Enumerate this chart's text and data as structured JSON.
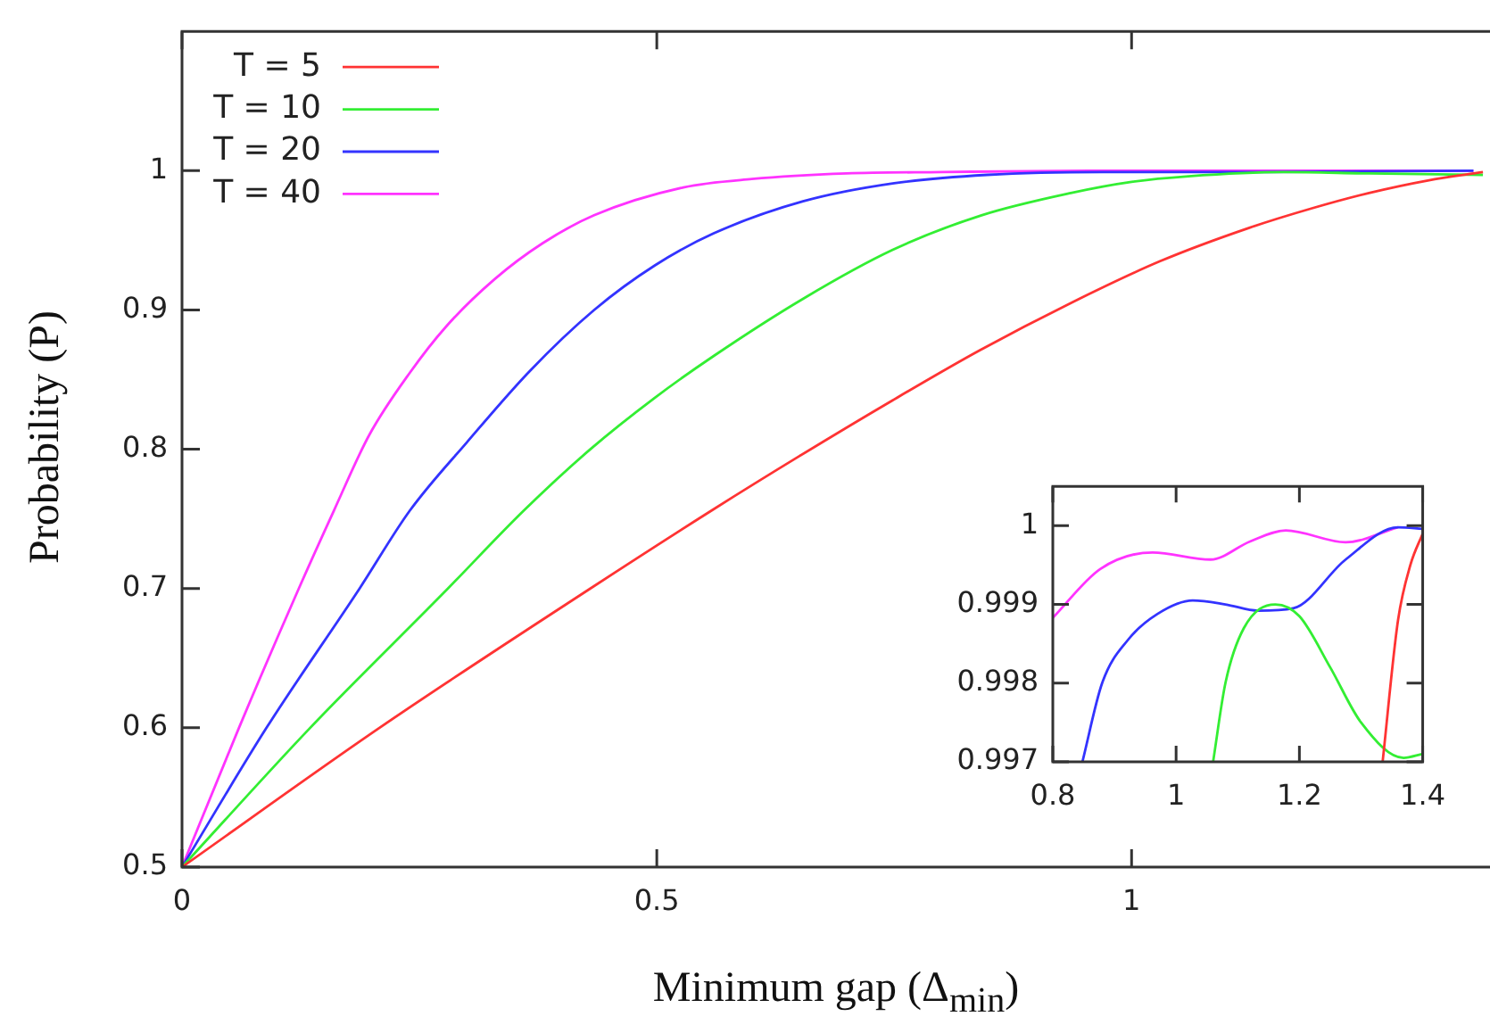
{
  "chart_data": [
    {
      "type": "line",
      "xlabel": "Minimum gap (Δ$_{min}$)",
      "ylabel": "Probability (P)",
      "xlim": [
        0,
        1.4
      ],
      "ylim": [
        0.5,
        1.1
      ],
      "xticks": [
        0,
        0.5,
        1
      ],
      "yticks": [
        0.5,
        0.6,
        0.7,
        0.8,
        0.9,
        1
      ],
      "legend": "top left",
      "line_style": "solid",
      "marker": "none",
      "series": [
        {
          "name": "T = 5",
          "color": "#ff3333",
          "x": [
            0,
            0.208,
            0.43,
            0.56,
            0.65,
            0.748,
            0.84,
            0.936,
            1.03,
            1.124,
            1.19,
            1.25,
            1.312,
            1.37
          ],
          "values": [
            0.5,
            0.6,
            0.7,
            0.757,
            0.795,
            0.835,
            0.871,
            0.905,
            0.935,
            0.959,
            0.973,
            0.984,
            0.993,
            0.999
          ]
        },
        {
          "name": "T = 10",
          "color": "#33ee33",
          "x": [
            0,
            0.135,
            0.28,
            0.36,
            0.43,
            0.498,
            0.56,
            0.654,
            0.748,
            0.842,
            0.936,
            1.0,
            1.06,
            1.16,
            1.25,
            1.37
          ],
          "values": [
            0.5,
            0.6,
            0.7,
            0.756,
            0.8,
            0.837,
            0.867,
            0.908,
            0.943,
            0.968,
            0.984,
            0.992,
            0.996,
            0.999,
            0.998,
            0.997
          ]
        },
        {
          "name": "T = 20",
          "color": "#3333ff",
          "x": [
            0,
            0.089,
            0.187,
            0.24,
            0.3,
            0.366,
            0.434,
            0.498,
            0.56,
            0.654,
            0.75,
            0.848,
            0.97,
            1.133,
            1.36
          ],
          "values": [
            0.5,
            0.6,
            0.7,
            0.756,
            0.805,
            0.856,
            0.9,
            0.932,
            0.955,
            0.978,
            0.991,
            0.997,
            0.999,
            0.999,
            1.0
          ]
        },
        {
          "name": "T = 40",
          "color": "#ff33ff",
          "x": [
            0,
            0.06,
            0.123,
            0.16,
            0.197,
            0.24,
            0.278,
            0.329,
            0.38,
            0.434,
            0.528,
            0.6,
            0.7,
            0.8,
            0.962,
            1.178,
            1.36
          ],
          "values": [
            0.5,
            0.6,
            0.7,
            0.756,
            0.81,
            0.855,
            0.888,
            0.922,
            0.948,
            0.968,
            0.988,
            0.994,
            0.998,
            0.999,
            1.0,
            1.0,
            1.0
          ]
        }
      ]
    },
    {
      "type": "line",
      "xlim": [
        0.8,
        1.4
      ],
      "ylim": [
        0.997,
        1.0005
      ],
      "xticks": [
        0.8,
        1,
        1.2,
        1.4
      ],
      "yticks": [
        0.997,
        0.998,
        0.999,
        1
      ],
      "line_style": "solid",
      "marker": "none",
      "series": [
        {
          "color": "#ff3333",
          "x": [
            1.335,
            1.36,
            1.38,
            1.4
          ],
          "values": [
            0.997,
            0.9988,
            0.9995,
            0.9999
          ]
        },
        {
          "color": "#33ee33",
          "x": [
            1.06,
            1.08,
            1.11,
            1.161,
            1.2,
            1.25,
            1.3,
            1.369,
            1.4
          ],
          "values": [
            0.997,
            0.998,
            0.9987,
            0.999,
            0.99885,
            0.9982,
            0.9975,
            0.99705,
            0.9971
          ]
        },
        {
          "color": "#3333ff",
          "x": [
            0.848,
            0.88,
            0.922,
            0.97,
            1.027,
            1.08,
            1.133,
            1.19,
            1.275,
            1.36,
            1.4
          ],
          "values": [
            0.997,
            0.998,
            0.99855,
            0.99888,
            0.99905,
            0.999,
            0.99892,
            0.99895,
            0.99957,
            0.99998,
            0.99996
          ]
        },
        {
          "color": "#ff33ff",
          "x": [
            0.8,
            0.877,
            0.962,
            1.056,
            1.12,
            1.178,
            1.275,
            1.36
          ],
          "values": [
            0.99883,
            0.99945,
            0.99966,
            0.99957,
            0.9998,
            0.99994,
            0.99979,
            0.99998
          ]
        }
      ]
    }
  ]
}
